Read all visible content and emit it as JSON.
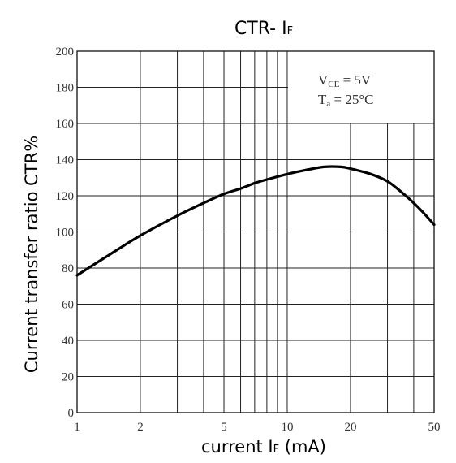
{
  "chart_data": {
    "type": "line",
    "title_main": "CTR- I",
    "title_sub": "F",
    "xlabel_main": "current I",
    "xlabel_sub": "F",
    "xlabel_unit": "(mA)",
    "ylabel": "Current transfer ratio CTR%",
    "x_scale": "log",
    "xlim": [
      1,
      50
    ],
    "ylim": [
      0,
      200
    ],
    "x_ticks": [
      1,
      2,
      5,
      10,
      20,
      50
    ],
    "x_tick_labels": [
      "1",
      "2",
      "5",
      "10",
      "20",
      "50"
    ],
    "x_gridlines": [
      1,
      2,
      3,
      4,
      5,
      6,
      7,
      8,
      9,
      10,
      20,
      30,
      40,
      50
    ],
    "y_ticks": [
      0,
      20,
      40,
      60,
      80,
      100,
      120,
      140,
      160,
      180,
      200
    ],
    "y_tick_labels": [
      "0",
      "20",
      "40",
      "60",
      "80",
      "100",
      "120",
      "140",
      "160",
      "180",
      "200"
    ],
    "grid": true,
    "annotation": {
      "line1_main": "V",
      "line1_sub": "CE",
      "line1_rest": " = 5V",
      "line2_main": "T",
      "line2_sub": "a",
      "line2_rest": " = 25°C"
    },
    "series": [
      {
        "x": [
          1,
          1.5,
          2,
          3,
          4,
          5,
          6,
          7,
          8,
          10,
          12,
          15,
          18,
          20,
          25,
          30,
          35,
          40,
          45,
          50
        ],
        "values": [
          76,
          89,
          98,
          109,
          116,
          121,
          124,
          127,
          129,
          132,
          134,
          136,
          136,
          135,
          132,
          128,
          122,
          116,
          110,
          104
        ]
      }
    ]
  }
}
